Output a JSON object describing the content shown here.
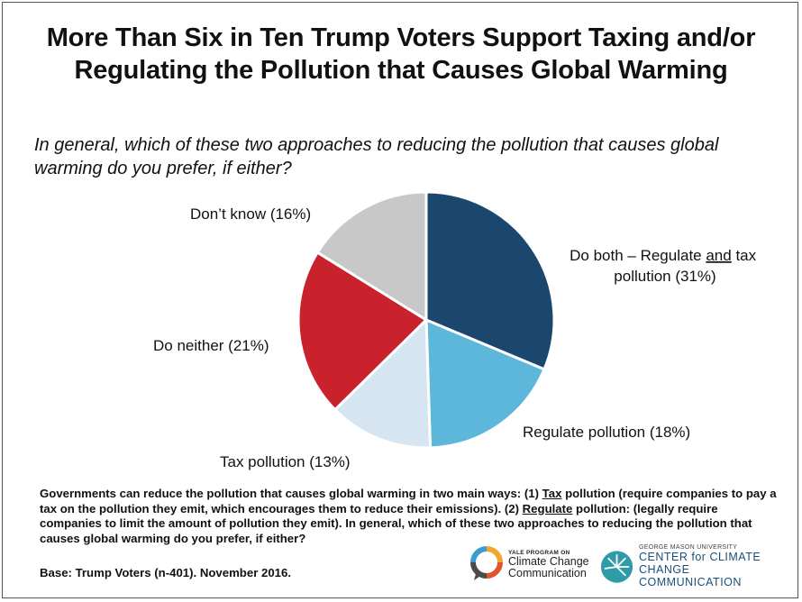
{
  "title_line1": "More Than Six in Ten Trump Voters Support Taxing and/or",
  "title_line2": "Regulating the Pollution that Causes Global Warming",
  "question": "In general, which of these two approaches to reducing the pollution that causes global warming do you prefer, if either?",
  "note": {
    "p1": "Governments can reduce the pollution that causes global warming in two main ways: (1) ",
    "tax_word": "Tax",
    "p2": " pollution (require companies to pay a tax on the pollution they emit, which encourages them to reduce their emissions). (2) ",
    "regulate_word": "Regulate",
    "p3": " pollution: (legally require companies to limit the amount of pollution they emit). In general, which of these two approaches to reducing the pollution that causes global warming do you prefer, if either?"
  },
  "base": "Base: Trump Voters (n-401). November 2016.",
  "logos": {
    "yale_small": "YALE PROGRAM ON",
    "yale_line1": "Climate Change",
    "yale_line2": "Communication",
    "gmu_small": "GEORGE MASON UNIVERSITY",
    "gmu_line1": "CENTER for CLIMATE CHANGE",
    "gmu_line2": "COMMUNICATION"
  },
  "chart_data": {
    "type": "pie",
    "title": "More Than Six in Ten Trump Voters Support Taxing and/or Regulating the Pollution that Causes Global Warming",
    "slices": [
      {
        "key": "both",
        "label_pre": "Do both – Regulate ",
        "label_u": "and",
        "label_post": " tax",
        "label_line2": "pollution  (31%)",
        "value": 31,
        "color": "#1b476e"
      },
      {
        "key": "regulate",
        "label": "Regulate pollution (18%)",
        "value": 18,
        "color": "#5db7da"
      },
      {
        "key": "tax",
        "label": "Tax pollution (13%)",
        "value": 13,
        "color": "#d5e5f2"
      },
      {
        "key": "neither",
        "label": "Do neither (21%)",
        "value": 21,
        "color": "#c9222c"
      },
      {
        "key": "dontknow",
        "label": "Don’t know (16%)",
        "value": 16,
        "color": "#c8c8c8"
      }
    ]
  }
}
